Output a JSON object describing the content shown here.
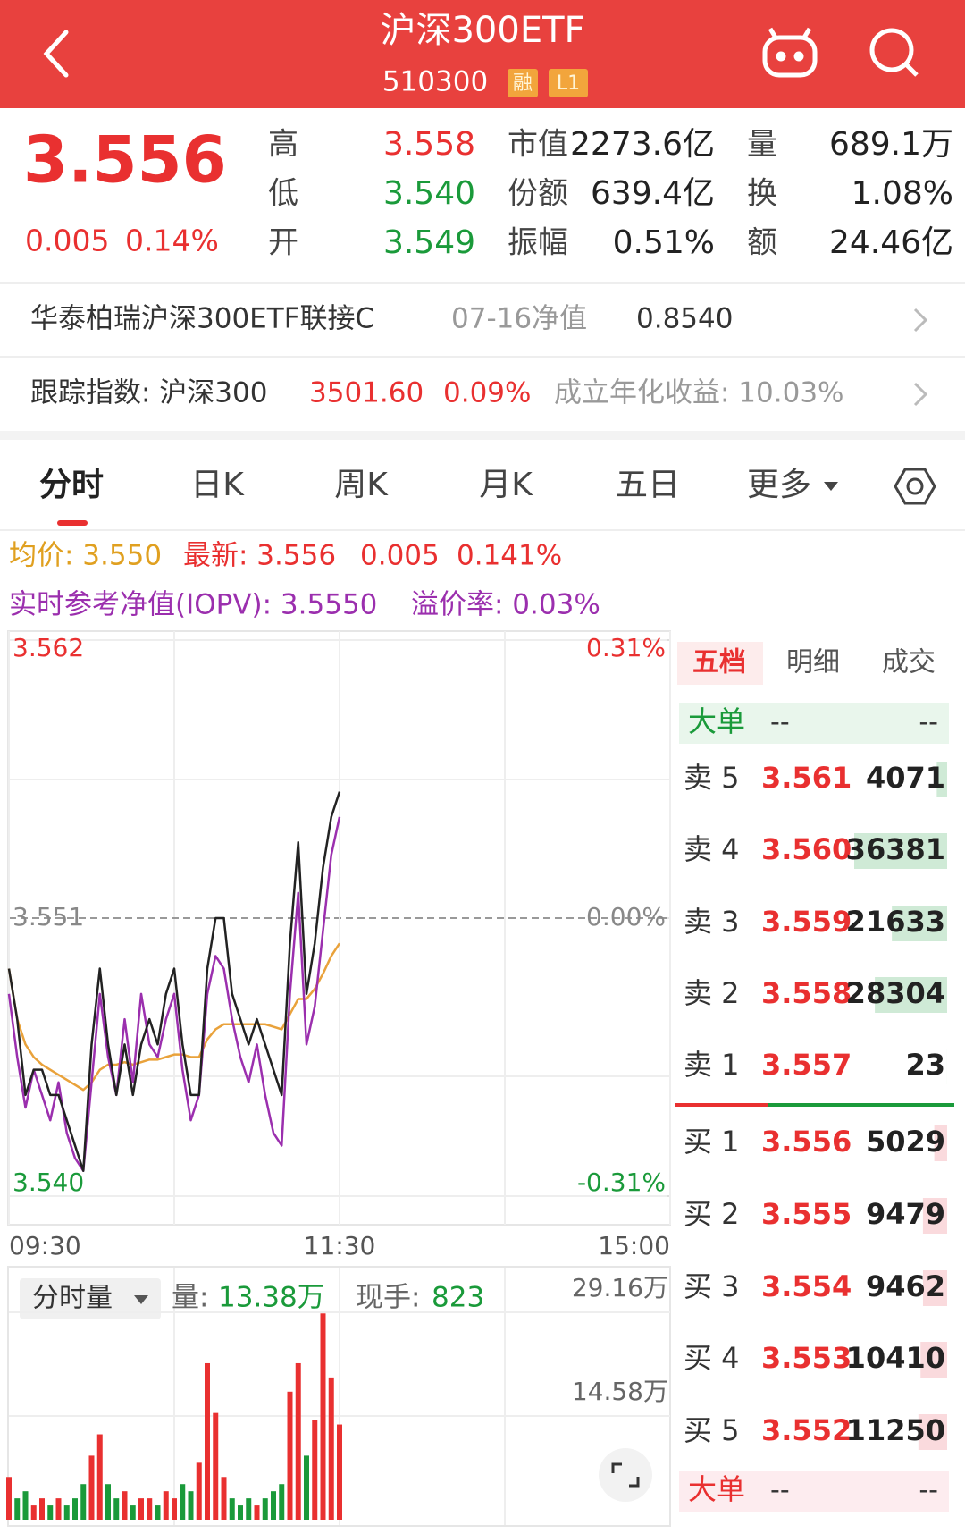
{
  "header": {
    "title": "沪深300ETF",
    "code": "510300",
    "badges": [
      "融",
      "L1"
    ]
  },
  "quote": {
    "price": "3.556",
    "change": "0.005",
    "change_pct": "0.14%",
    "stats": [
      {
        "label": "高",
        "value": "3.558"
      },
      {
        "label": "低",
        "value": "3.540"
      },
      {
        "label": "开",
        "value": "3.549"
      },
      {
        "label": "市值",
        "value": "2273.6亿"
      },
      {
        "label": "份额",
        "value": "639.4亿"
      },
      {
        "label": "振幅",
        "value": "0.51%"
      },
      {
        "label": "量",
        "value": "689.1万"
      },
      {
        "label": "换",
        "value": "1.08%"
      },
      {
        "label": "额",
        "value": "24.46亿"
      }
    ]
  },
  "fund_row": {
    "name": "华泰柏瑞沪深300ETF联接C",
    "nav_label": "07-16净值",
    "nav": "0.8540"
  },
  "index_row": {
    "label": "跟踪指数: 沪深300",
    "value": "3501.60",
    "change_pct": "0.09%",
    "annual_return": "成立年化收益: 10.03%"
  },
  "tabs": [
    "分时",
    "日K",
    "周K",
    "月K",
    "五日",
    "更多"
  ],
  "info": {
    "avg": "均价: 3.550",
    "latest": "最新: 3.556",
    "change": "0.005",
    "change_pct": "0.141%",
    "iopv": "实时参考净值(IOPV): 3.5550",
    "premium": "溢价率: 0.03%"
  },
  "chart_data": [
    {
      "type": "line",
      "x": [
        0,
        3,
        6,
        9,
        12,
        15,
        18,
        21,
        24,
        27,
        30,
        33,
        36,
        39,
        42,
        45,
        48,
        51,
        54,
        57,
        60,
        63,
        66,
        69,
        72,
        75,
        78,
        81,
        84,
        87,
        90,
        93,
        96,
        99,
        102,
        105,
        108,
        111,
        114,
        117,
        120
      ],
      "series": [
        {
          "color": "#222222",
          "values": [
            3.549,
            3.547,
            3.544,
            3.545,
            3.545,
            3.544,
            3.544,
            3.543,
            3.542,
            3.541,
            3.546,
            3.549,
            3.546,
            3.544,
            3.546,
            3.544,
            3.546,
            3.547,
            3.546,
            3.548,
            3.549,
            3.546,
            3.544,
            3.544,
            3.549,
            3.551,
            3.551,
            3.548,
            3.547,
            3.546,
            3.547,
            3.546,
            3.545,
            3.544,
            3.55,
            3.554,
            3.548,
            3.55,
            3.553,
            3.555,
            3.556
          ]
        },
        {
          "color": "#9b2fae",
          "values": [
            3.548,
            3.5455,
            3.5435,
            3.545,
            3.544,
            3.543,
            3.5445,
            3.5425,
            3.5415,
            3.541,
            3.5445,
            3.548,
            3.5455,
            3.544,
            3.547,
            3.5445,
            3.548,
            3.546,
            3.5455,
            3.547,
            3.548,
            3.545,
            3.543,
            3.544,
            3.548,
            3.5495,
            3.549,
            3.547,
            3.5455,
            3.5445,
            3.546,
            3.544,
            3.5425,
            3.542,
            3.548,
            3.552,
            3.546,
            3.5475,
            3.5505,
            3.5535,
            3.555
          ]
        },
        {
          "color": "#e9a23b",
          "values": [
            3.549,
            3.547,
            3.546,
            3.5455,
            3.5452,
            3.545,
            3.5448,
            3.5446,
            3.5444,
            3.5442,
            3.5445,
            3.545,
            3.5452,
            3.5452,
            3.5453,
            3.5452,
            3.5453,
            3.5454,
            3.5454,
            3.5455,
            3.5456,
            3.5456,
            3.5455,
            3.5455,
            3.5462,
            3.5466,
            3.5468,
            3.5468,
            3.5468,
            3.5468,
            3.5468,
            3.5468,
            3.5467,
            3.5466,
            3.5472,
            3.5478,
            3.5478,
            3.5482,
            3.5488,
            3.5495,
            3.55
          ]
        }
      ],
      "xlim": [
        0,
        240
      ],
      "xticks": [
        {
          "value": 0,
          "label": "09:30"
        },
        {
          "value": 120,
          "label": "11:30"
        },
        {
          "value": 240,
          "label": "15:00"
        }
      ],
      "ylim": [
        3.54,
        3.562
      ],
      "yticks": [
        3.562,
        3.551,
        {
          "value": 3.54,
          "label": "3.540"
        }
      ],
      "y2lim": [
        -0.31,
        0.31
      ],
      "y2ticks": [
        {
          "value": 0.31,
          "label": "0.31%"
        },
        {
          "value": 0,
          "label": "0.00%"
        },
        {
          "value": -0.31,
          "label": "-0.31%"
        }
      ]
    },
    {
      "type": "bar",
      "title": "分时量",
      "x": [
        0,
        3,
        6,
        9,
        12,
        15,
        18,
        21,
        24,
        27,
        30,
        33,
        36,
        39,
        42,
        45,
        48,
        51,
        54,
        57,
        60,
        63,
        66,
        69,
        72,
        75,
        78,
        81,
        84,
        87,
        90,
        93,
        96,
        99,
        102,
        105,
        108,
        111,
        114,
        117,
        120
      ],
      "values": [
        6,
        3,
        4,
        2,
        3,
        2,
        3,
        2,
        3,
        5,
        9,
        12,
        5,
        3,
        4,
        2,
        3,
        3,
        2,
        4,
        3,
        5,
        4,
        8,
        22,
        15,
        6,
        3,
        2,
        3,
        2,
        3,
        4,
        5,
        18,
        22,
        9,
        14,
        29,
        20,
        13.38
      ],
      "up_color": "#e93030",
      "down_color": "#1a9a3a",
      "xlim": [
        0,
        240
      ],
      "ylim": [
        0,
        29.16
      ],
      "yticks": [
        {
          "value": 29.16,
          "label": "29.16万"
        },
        {
          "value": 14.58,
          "label": "14.58万"
        }
      ],
      "latest_label": "量:",
      "latest_value": "13.38万",
      "current_label": "现手:",
      "current_value": "823"
    }
  ],
  "order_book": {
    "tabs": [
      "五档",
      "明细",
      "成交"
    ],
    "big_top": [
      "大单",
      "--",
      "--"
    ],
    "asks": [
      {
        "label": "卖 5",
        "price": "3.561",
        "volume": 4071
      },
      {
        "label": "卖 4",
        "price": "3.560",
        "volume": 36381
      },
      {
        "label": "卖 3",
        "price": "3.559",
        "volume": 21633
      },
      {
        "label": "卖 2",
        "price": "3.558",
        "volume": 28304
      },
      {
        "label": "卖 1",
        "price": "3.557",
        "volume": 23
      }
    ],
    "bids": [
      {
        "label": "买 1",
        "price": "3.556",
        "volume": 5029
      },
      {
        "label": "买 2",
        "price": "3.555",
        "volume": 9479
      },
      {
        "label": "买 3",
        "price": "3.554",
        "volume": 9462
      },
      {
        "label": "买 4",
        "price": "3.553",
        "volume": 10410
      },
      {
        "label": "买 5",
        "price": "3.552",
        "volume": 11250
      }
    ],
    "big_bottom": [
      "大单",
      "--",
      "--"
    ]
  }
}
